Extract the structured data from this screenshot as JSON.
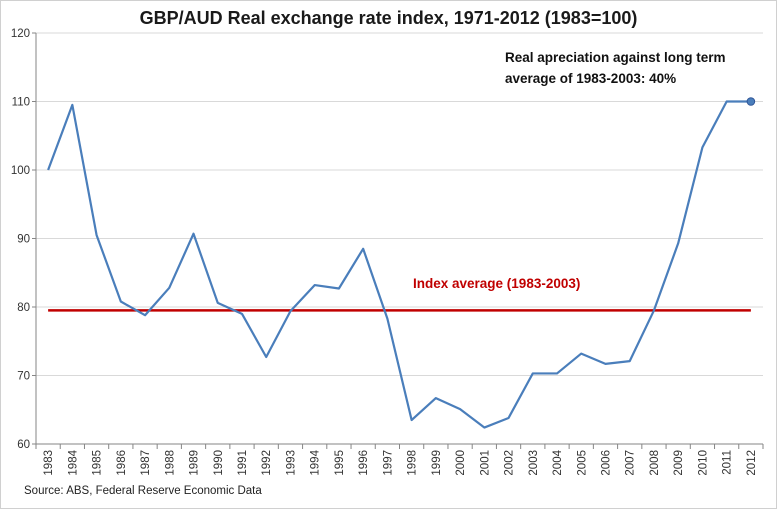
{
  "chart_data": {
    "type": "line",
    "title": "GBP/AUD Real exchange rate index, 1971-2012 (1983=100)",
    "categories": [
      "1983",
      "1984",
      "1985",
      "1986",
      "1987",
      "1988",
      "1989",
      "1990",
      "1991",
      "1992",
      "1993",
      "1994",
      "1995",
      "1996",
      "1997",
      "1998",
      "1999",
      "2000",
      "2001",
      "2002",
      "2003",
      "2004",
      "2005",
      "2006",
      "2007",
      "2008",
      "2009",
      "2010",
      "2011",
      "2012"
    ],
    "series": [
      {
        "name": "GBP/AUD Real exchange rate index",
        "color": "#4a7ebb",
        "values": [
          100,
          109.5,
          90.5,
          80.8,
          78.8,
          82.8,
          90.7,
          80.6,
          79.0,
          72.7,
          79.4,
          83.2,
          82.7,
          88.5,
          78.3,
          63.5,
          66.7,
          65.1,
          62.4,
          63.8,
          70.3,
          70.3,
          73.2,
          71.7,
          72.1,
          79.5,
          89.3,
          103.3,
          110.0,
          110.0
        ]
      }
    ],
    "reference_line": {
      "name": "Index average (1983-2003)",
      "label": "Index average (1983-2003)",
      "value": 79.5,
      "color": "#c00000"
    },
    "annotation": "Real apreciation against long term average of 1983-2003: 40%",
    "ylim": [
      60,
      120
    ],
    "yticks": [
      60,
      70,
      80,
      90,
      100,
      110,
      120
    ],
    "grid": true,
    "xlabel": "",
    "ylabel": "",
    "source": "Source: ABS, Federal Reserve Economic Data"
  }
}
